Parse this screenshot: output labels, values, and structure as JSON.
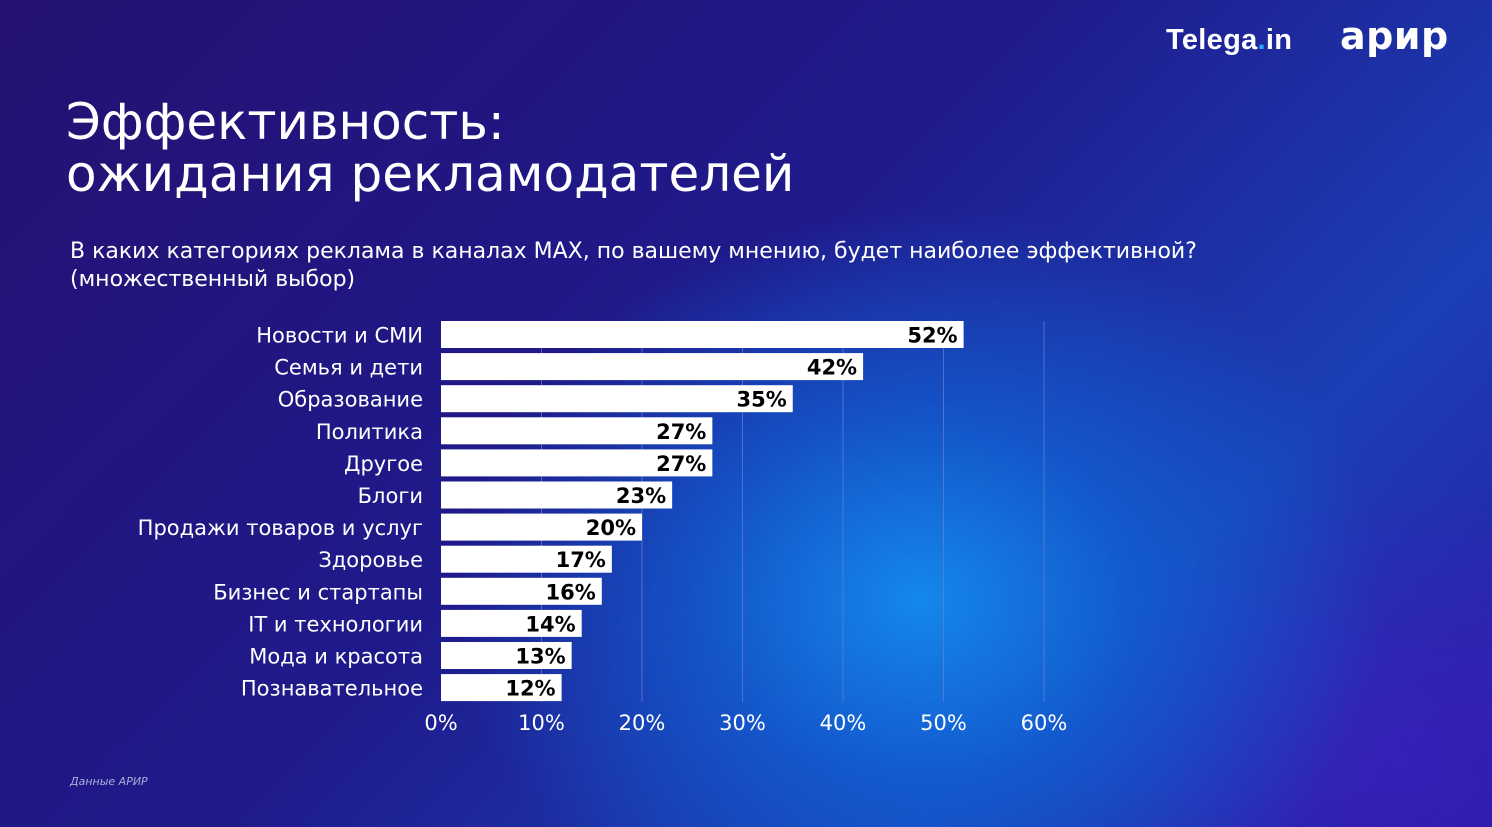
{
  "logos": {
    "telega_main": "Telega",
    "telega_dot": ".",
    "telega_tld": "in",
    "arir": "арир"
  },
  "title": {
    "line1": "Эффективность:",
    "line2": "ожидания рекламодателей"
  },
  "question": {
    "line1": "В каких категориях реклама в каналах MAX, по вашему мнению, будет наиболее эффективной?",
    "line2": "(множественный выбор)"
  },
  "source": "Данные АРИР",
  "colors": {
    "bar": "#ffffff",
    "grid": "#6b7fd6",
    "label": "#ffffff",
    "value": "#000000"
  },
  "chart_data": {
    "type": "bar",
    "orientation": "horizontal",
    "title": "",
    "xlabel": "",
    "ylabel": "",
    "categories": [
      "Новости и СМИ",
      "Семья и дети",
      "Образование",
      "Политика",
      "Другое",
      "Блоги",
      "Продажи товаров и услуг",
      "Здоровье",
      "Бизнес и стартапы",
      "IT и технологии",
      "Мода и красота",
      "Познавательное"
    ],
    "values": [
      52,
      42,
      35,
      27,
      27,
      23,
      20,
      17,
      16,
      14,
      13,
      12
    ],
    "value_labels": [
      "52%",
      "42%",
      "35%",
      "27%",
      "27%",
      "23%",
      "20%",
      "17%",
      "16%",
      "14%",
      "13%",
      "12%"
    ],
    "xlim": [
      0,
      60
    ],
    "xticks": [
      0,
      10,
      20,
      30,
      40,
      50,
      60
    ],
    "xtick_labels": [
      "0%",
      "10%",
      "20%",
      "30%",
      "40%",
      "50%",
      "60%"
    ],
    "grid": true,
    "legend": "none"
  }
}
